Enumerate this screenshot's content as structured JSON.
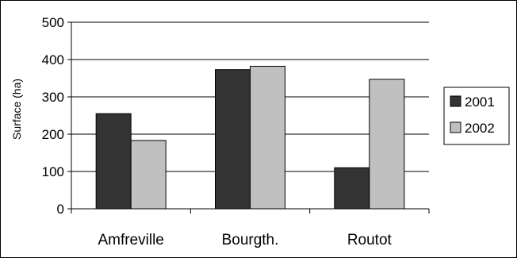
{
  "chart_data": {
    "type": "bar",
    "title": "",
    "xlabel": "",
    "ylabel": "Surface (ha)",
    "categories": [
      "Amfreville",
      "Bourgth.",
      "Routot"
    ],
    "series": [
      {
        "name": "2001",
        "values": [
          255,
          373,
          110
        ],
        "color": "#333333"
      },
      {
        "name": "2002",
        "values": [
          183,
          382,
          347
        ],
        "color": "#c0c0c0"
      }
    ],
    "ylim": [
      0,
      500
    ],
    "yticks": [
      0,
      100,
      200,
      300,
      400,
      500
    ],
    "grid": true,
    "legend": "right"
  }
}
